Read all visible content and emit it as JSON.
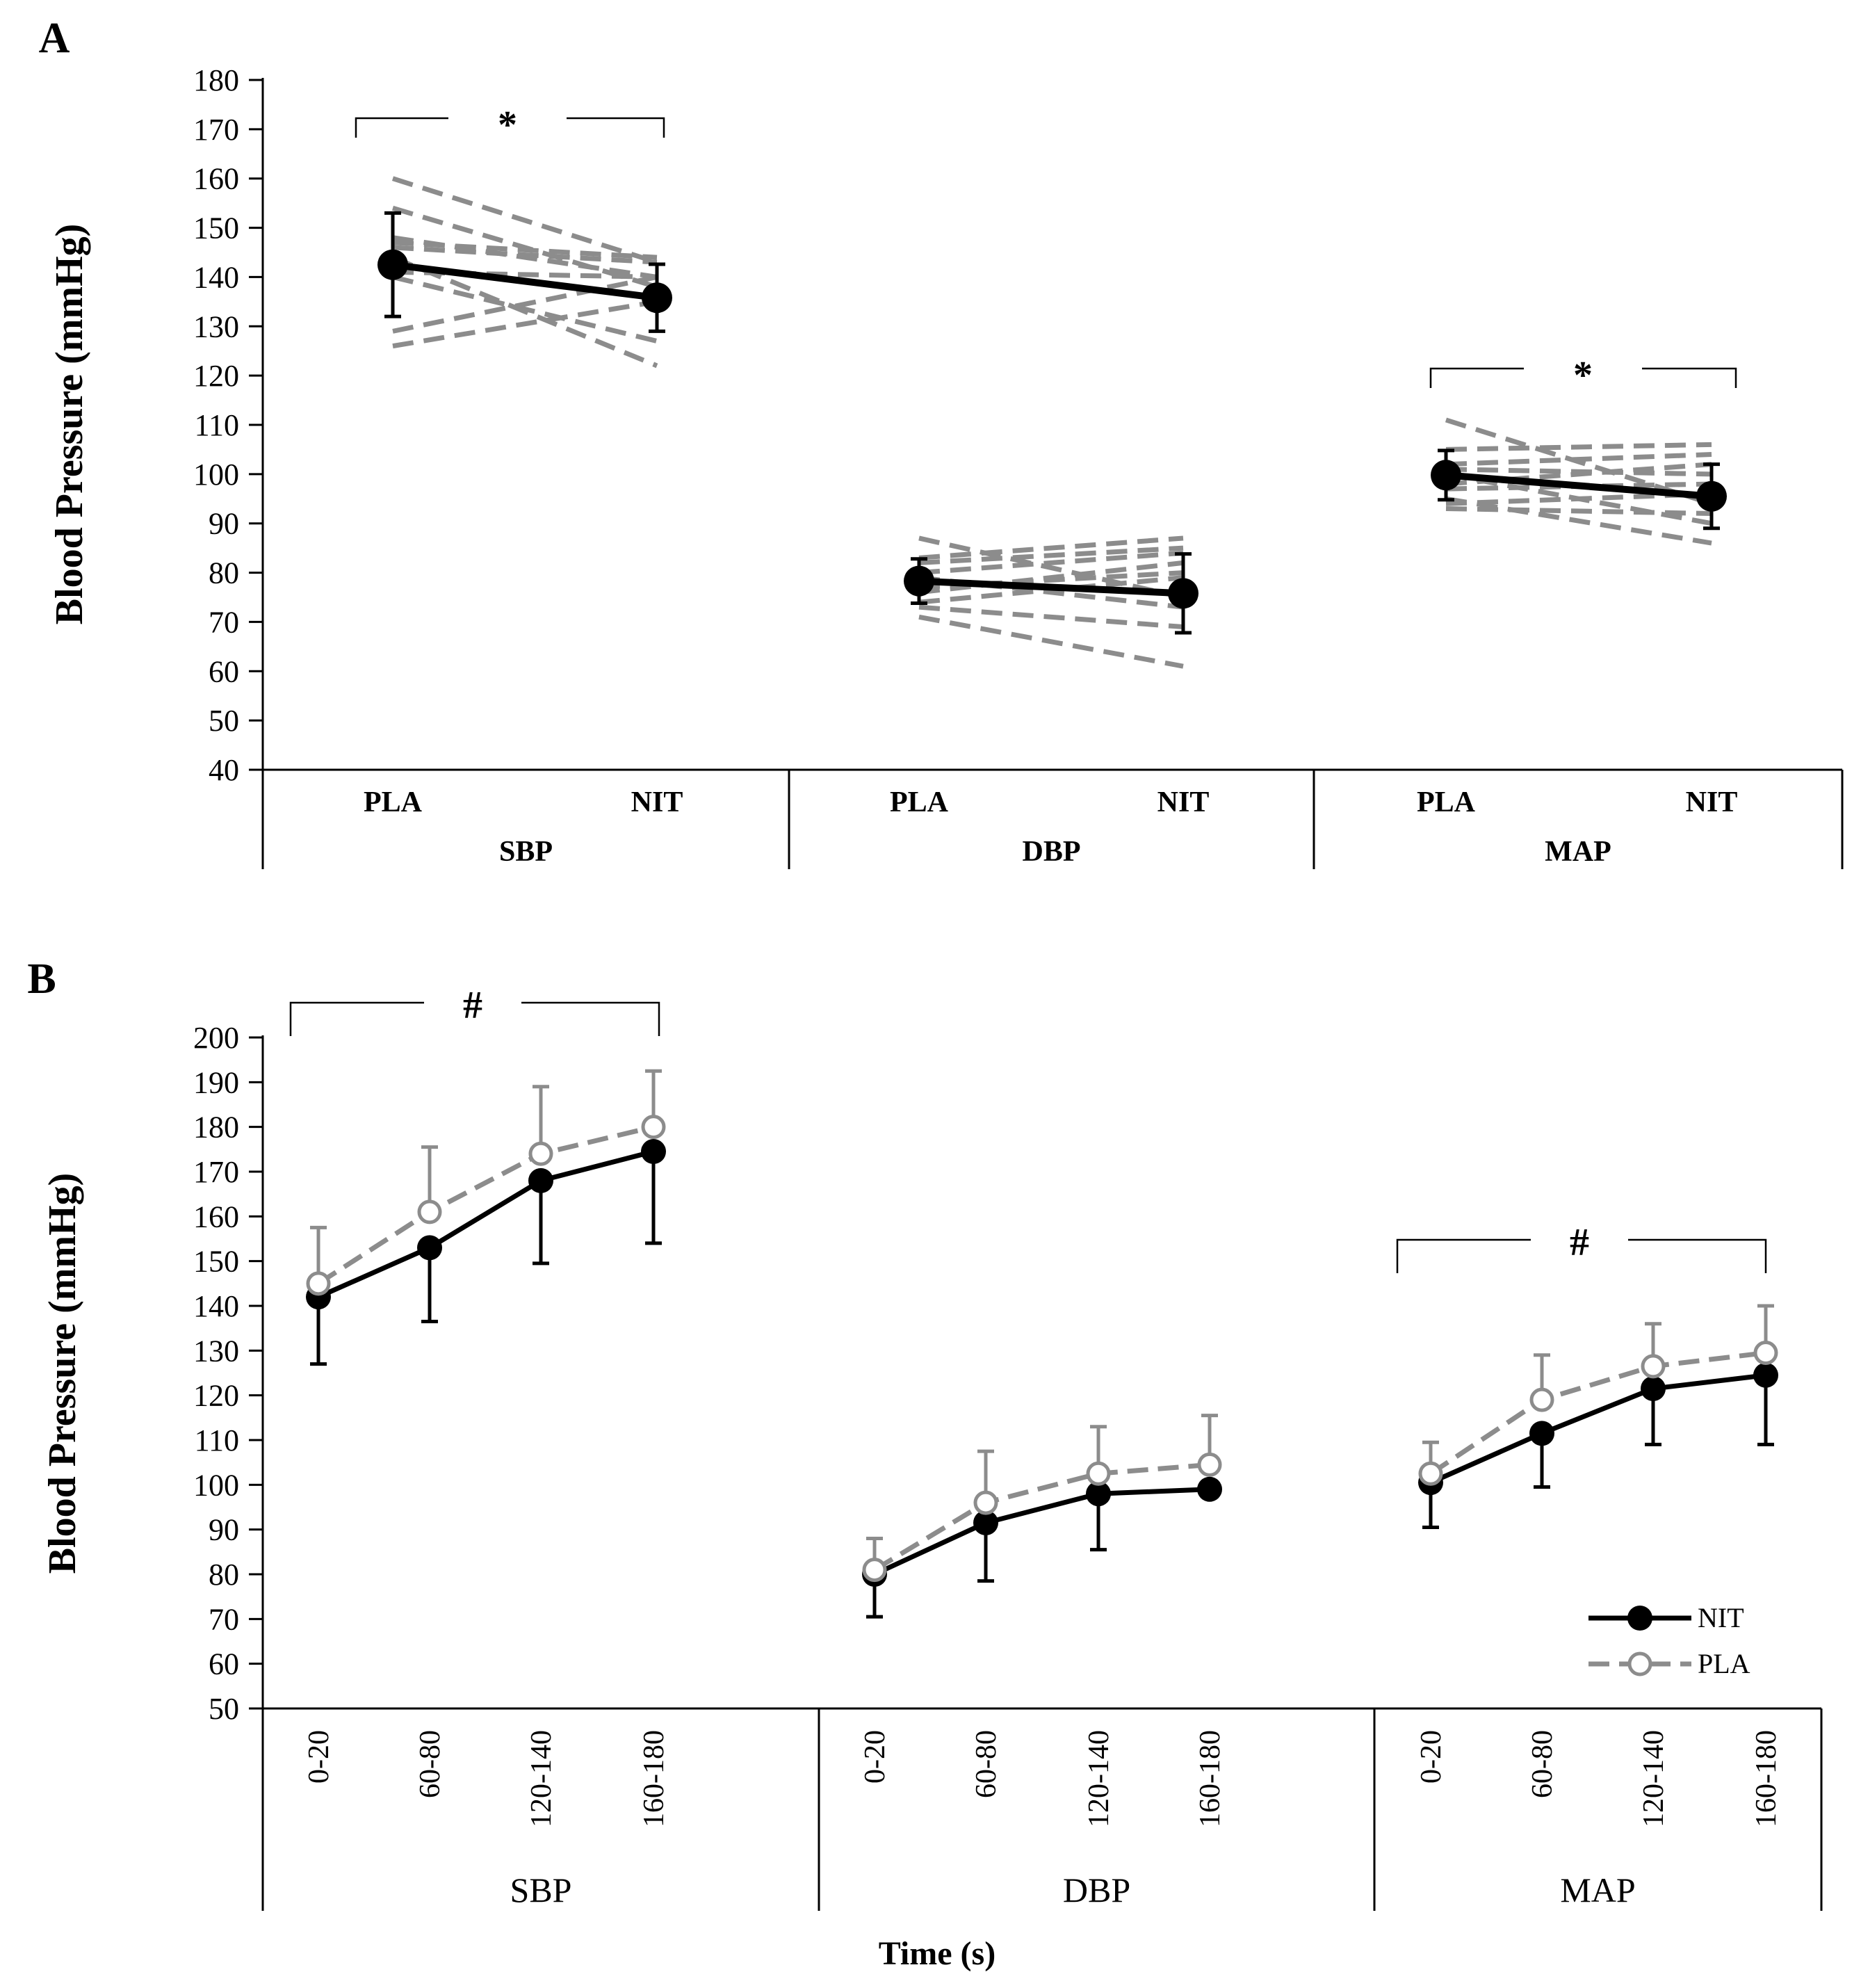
{
  "colors": {
    "nit": "#000000",
    "pla": "#8c8c8c",
    "indiv": "#8c8c8c"
  },
  "chart_data": [
    {
      "panel_label": "A",
      "type": "line",
      "ylabel": "Blood Pressure (mmHg)",
      "ylim": [
        40,
        180
      ],
      "yticks": [
        40,
        50,
        60,
        70,
        80,
        90,
        100,
        110,
        120,
        130,
        140,
        150,
        160,
        170,
        180
      ],
      "conditions": [
        "PLA",
        "NIT"
      ],
      "groups": [
        {
          "name": "SBP",
          "mean": [
            142.5,
            135.8
          ],
          "sd": [
            10.5,
            6.8
          ],
          "individuals": [
            [
              160,
              143
            ],
            [
              154,
              138
            ],
            [
              148,
              140
            ],
            [
              147,
              144
            ],
            [
              146,
              143
            ],
            [
              144,
              122
            ],
            [
              141,
              140
            ],
            [
              140,
              127
            ],
            [
              129,
              140
            ],
            [
              126,
              135
            ]
          ],
          "significance": "*"
        },
        {
          "name": "DBP",
          "mean": [
            78.3,
            75.8
          ],
          "sd": [
            4.5,
            8.0
          ],
          "individuals": [
            [
              87,
              75
            ],
            [
              83,
              87
            ],
            [
              82,
              85
            ],
            [
              80,
              84
            ],
            [
              79,
              73
            ],
            [
              77,
              80
            ],
            [
              76,
              82
            ],
            [
              74,
              79
            ],
            [
              73,
              69
            ],
            [
              71,
              61
            ]
          ],
          "significance": ""
        },
        {
          "name": "MAP",
          "mean": [
            99.8,
            95.5
          ],
          "sd": [
            5.0,
            6.5
          ],
          "individuals": [
            [
              111,
              94
            ],
            [
              105,
              106
            ],
            [
              102,
              104
            ],
            [
              101,
              100
            ],
            [
              100,
              90
            ],
            [
              98,
              102
            ],
            [
              97,
              98
            ],
            [
              95,
              86
            ],
            [
              94,
              96
            ],
            [
              93,
              92
            ]
          ],
          "significance": "*"
        }
      ]
    },
    {
      "panel_label": "B",
      "type": "line",
      "ylabel": "Blood Pressure (mmHg)",
      "xlabel": "Time (s)",
      "ylim": [
        50,
        200
      ],
      "yticks": [
        50,
        60,
        70,
        80,
        90,
        100,
        110,
        120,
        130,
        140,
        150,
        160,
        170,
        180,
        190,
        200
      ],
      "time_bins": [
        "0-20",
        "60-80",
        "120-140",
        "160-180"
      ],
      "legend": [
        {
          "name": "NIT",
          "style": "solid-filled"
        },
        {
          "name": "PLA",
          "style": "dashed-open"
        }
      ],
      "groups": [
        {
          "name": "SBP",
          "significance": "#",
          "series": [
            {
              "name": "NIT",
              "values": [
                142.0,
                153.0,
                168.0,
                174.5
              ],
              "sd": [
                15.0,
                16.5,
                18.5,
                20.5
              ]
            },
            {
              "name": "PLA",
              "values": [
                145.0,
                161.0,
                174.0,
                180.0
              ],
              "sd": [
                12.5,
                14.5,
                15.0,
                12.5
              ]
            }
          ]
        },
        {
          "name": "DBP",
          "significance": "",
          "series": [
            {
              "name": "NIT",
              "values": [
                80.0,
                91.5,
                98.0,
                99.0
              ],
              "sd": [
                9.5,
                13.0,
                12.5,
                0
              ]
            },
            {
              "name": "PLA",
              "values": [
                81.0,
                96.0,
                102.5,
                104.5
              ],
              "sd": [
                7.0,
                11.5,
                10.5,
                11.0
              ]
            }
          ]
        },
        {
          "name": "MAP",
          "significance": "#",
          "series": [
            {
              "name": "NIT",
              "values": [
                100.5,
                111.5,
                121.5,
                124.5
              ],
              "sd": [
                10.0,
                12.0,
                12.5,
                15.5
              ]
            },
            {
              "name": "PLA",
              "values": [
                102.5,
                119.0,
                126.5,
                129.5
              ],
              "sd": [
                7.0,
                10.0,
                9.5,
                10.5
              ]
            }
          ]
        }
      ]
    }
  ]
}
